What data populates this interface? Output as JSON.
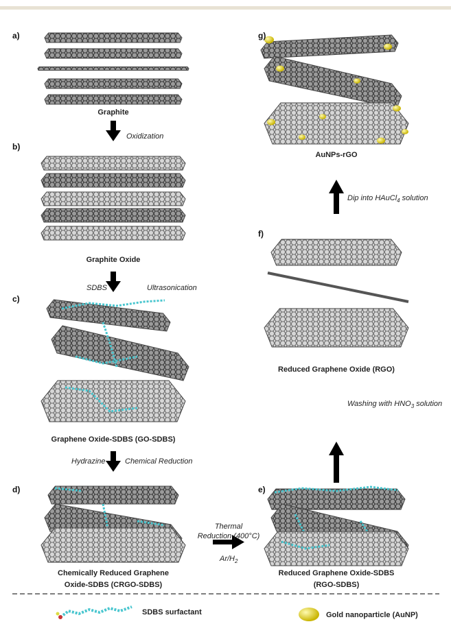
{
  "panels": [
    {
      "label": "a)",
      "caption": [
        "Graphite"
      ]
    },
    {
      "label": "b)",
      "caption": [
        "Graphite Oxide"
      ]
    },
    {
      "label": "c)",
      "caption": [
        "Graphene Oxide-SDBS (GO-SDBS)"
      ]
    },
    {
      "label": "d)",
      "caption": [
        "Chemically Reduced Graphene",
        "Oxide-SDBS (CRGO-SDBS)"
      ]
    },
    {
      "label": "e)",
      "caption": [
        "Reduced Graphene Oxide-SDBS",
        "(RGO-SDBS)"
      ]
    },
    {
      "label": "f)",
      "caption": [
        "Reduced Graphene Oxide (RGO)"
      ]
    },
    {
      "label": "g)",
      "caption": [
        "AuNPs-rGO"
      ]
    }
  ],
  "steps": {
    "oxidization": "Oxidization",
    "ultrasonication": [
      "SDBS",
      "Ultrasonication"
    ],
    "chemical_reduction": [
      "Hydrazine",
      "Chemical Reduction"
    ],
    "thermal": {
      "lines": [
        "Thermal",
        "Reduction (400°C)"
      ],
      "gas": "Ar/H",
      "gas_sub": "2"
    },
    "washing": {
      "before": "Washing with HNO",
      "sub": "3",
      "after": " solution"
    },
    "dip": {
      "before": "Dip into HAuCl",
      "sub": "4",
      "after": " solution"
    }
  },
  "legend": {
    "surfactant": "SDBS surfactant",
    "nanoparticle": "Gold nanoparticle (AuNP)"
  }
}
